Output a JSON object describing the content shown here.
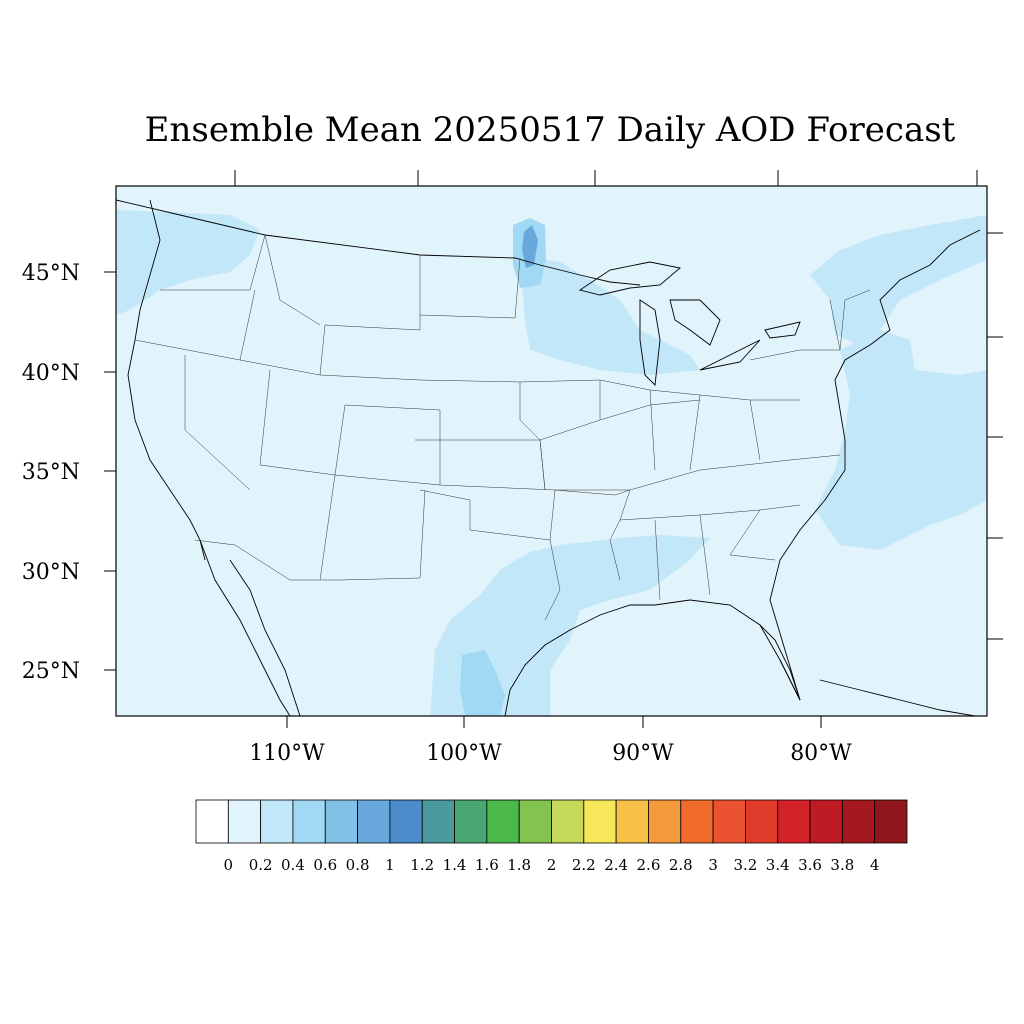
{
  "title": "Ensemble Mean 20250517 Daily AOD Forecast",
  "latitude_labels": [
    "45°N",
    "40°N",
    "35°N",
    "30°N",
    "25°N"
  ],
  "longitude_labels": [
    "110°W",
    "100°W",
    "90°W",
    "80°W"
  ],
  "colorbar": {
    "labels": [
      "0",
      "0.2",
      "0.4",
      "0.6",
      "0.8",
      "1",
      "1.2",
      "1.4",
      "1.6",
      "1.8",
      "2",
      "2.2",
      "2.4",
      "2.6",
      "2.8",
      "3",
      "3.2",
      "3.4",
      "3.6",
      "3.8",
      "4"
    ],
    "colors": [
      "#ffffff",
      "#e1f3fb",
      "#c2e7f8",
      "#a1d9f4",
      "#82c0e6",
      "#69a8dc",
      "#4b8ccb",
      "#4b9aa0",
      "#49a872",
      "#4bb84a",
      "#83c450",
      "#c6d85a",
      "#f7e85b",
      "#f8c049",
      "#f5993d",
      "#f06a2c",
      "#ea5230",
      "#e03c2c",
      "#d42229",
      "#be1b24",
      "#a6181f",
      "#8f161b"
    ]
  },
  "map": {
    "background_color": "#e1f3fb",
    "light_plume_color": "#c2e7f8",
    "medium_plume_color": "#a1d9f4",
    "dark_plume_color": "#69a8dc"
  }
}
